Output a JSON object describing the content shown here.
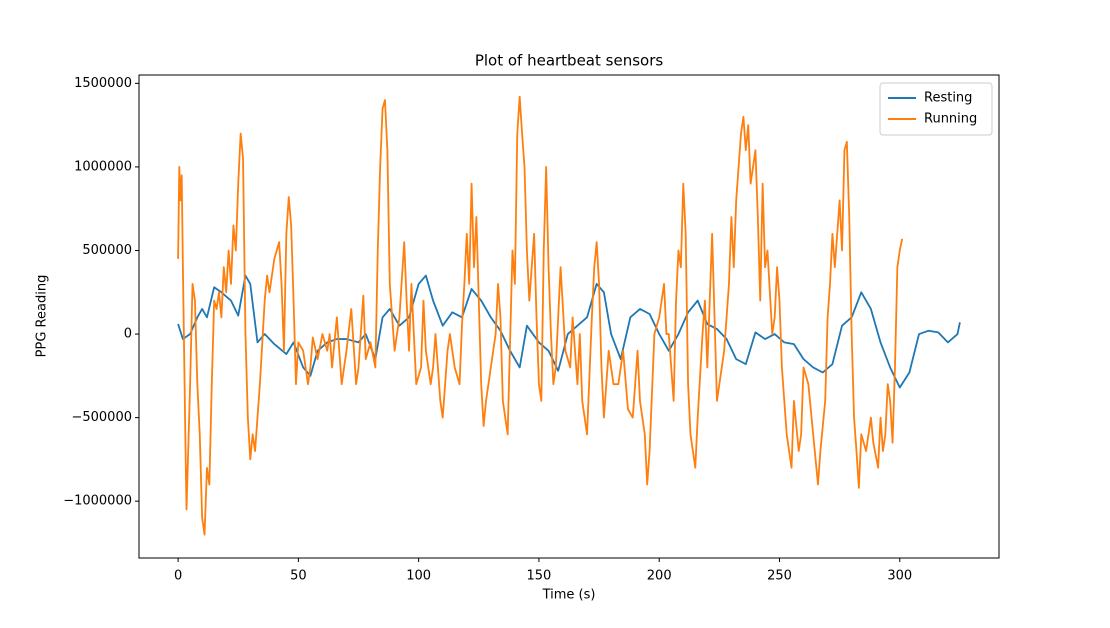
{
  "chart_data": {
    "type": "line",
    "title": "Plot of heartbeat sensors",
    "x_label": "Time (s)",
    "y_label": "PPG Reading",
    "xlim": [
      -16.25,
      341.25
    ],
    "ylim": [
      -1340000,
      1550000
    ],
    "xticks": [
      0,
      50,
      100,
      150,
      200,
      250,
      300
    ],
    "yticks": [
      {
        "value": -1000000,
        "label": "−1000000"
      },
      {
        "value": -500000,
        "label": "−500000"
      },
      0,
      500000,
      1000000,
      1500000
    ],
    "legend": "upper right",
    "grid": false,
    "series": [
      {
        "name": "Resting",
        "color": "#1f77b4",
        "x": [
          0,
          2,
          5,
          8,
          10,
          12,
          15,
          18,
          22,
          25,
          28,
          30,
          33,
          36,
          40,
          45,
          48,
          52,
          55,
          58,
          62,
          66,
          70,
          75,
          78,
          82,
          85,
          88,
          92,
          96,
          100,
          103,
          106,
          110,
          114,
          118,
          122,
          126,
          130,
          134,
          138,
          142,
          145,
          150,
          154,
          158,
          162,
          166,
          170,
          174,
          177,
          180,
          184,
          188,
          192,
          196,
          200,
          204,
          208,
          212,
          216,
          220,
          224,
          228,
          232,
          236,
          240,
          244,
          248,
          252,
          256,
          260,
          264,
          268,
          272,
          276,
          280,
          284,
          288,
          292,
          296,
          300,
          304,
          308,
          312,
          316,
          320,
          324,
          325
        ],
        "values": [
          60000,
          -30000,
          0,
          100000,
          150000,
          100000,
          280000,
          250000,
          200000,
          110000,
          350000,
          300000,
          -50000,
          0,
          -60000,
          -120000,
          -50000,
          -200000,
          -250000,
          -100000,
          -50000,
          -30000,
          -30000,
          -50000,
          0,
          -150000,
          100000,
          150000,
          50000,
          100000,
          300000,
          350000,
          200000,
          50000,
          130000,
          100000,
          270000,
          200000,
          100000,
          20000,
          -100000,
          -200000,
          50000,
          -50000,
          -100000,
          -220000,
          0,
          50000,
          100000,
          300000,
          250000,
          0,
          -150000,
          100000,
          150000,
          120000,
          0,
          -100000,
          0,
          130000,
          200000,
          60000,
          30000,
          -30000,
          -150000,
          -180000,
          10000,
          -30000,
          0,
          -50000,
          -60000,
          -150000,
          -200000,
          -230000,
          -180000,
          50000,
          100000,
          250000,
          150000,
          -50000,
          -200000,
          -320000,
          -230000,
          0,
          20000,
          10000,
          -50000,
          0,
          70000
        ]
      },
      {
        "name": "Running",
        "color": "#ff7f0e",
        "x": [
          0,
          0.5,
          1,
          1.5,
          2,
          3,
          3.5,
          5,
          6,
          7,
          8,
          9,
          10,
          11,
          12,
          13,
          14,
          15,
          16,
          17,
          18,
          19,
          20,
          21,
          22,
          23,
          24,
          25,
          26,
          27,
          28,
          29,
          30,
          31,
          32,
          34,
          36,
          37,
          38,
          40,
          42,
          43,
          44,
          45,
          46,
          47,
          48,
          49,
          50,
          52,
          54,
          55,
          56,
          58,
          60,
          62,
          63,
          64,
          66,
          68,
          70,
          72,
          74,
          75,
          77,
          78,
          80,
          82,
          83,
          84,
          85,
          86,
          87,
          88,
          90,
          92,
          94,
          95,
          96,
          97,
          98,
          99,
          101,
          102,
          103,
          105,
          106,
          107,
          109,
          110,
          112,
          113,
          115,
          117,
          118,
          119,
          120,
          121,
          122,
          123,
          124,
          125,
          126,
          127,
          128,
          130,
          132,
          133,
          134,
          135,
          137,
          139,
          140,
          141,
          142,
          143,
          144,
          145,
          146,
          148,
          149,
          150,
          151,
          152,
          153,
          154,
          155,
          156,
          157,
          159,
          161,
          163,
          164,
          166,
          167,
          168,
          170,
          172,
          173,
          174,
          175,
          176,
          177,
          179,
          181,
          183,
          185,
          187,
          189,
          191,
          192,
          194,
          195,
          196,
          198,
          200,
          202,
          203,
          204,
          206,
          207,
          208,
          209,
          210,
          211,
          212,
          213,
          214,
          215,
          216,
          218,
          219,
          220,
          222,
          223,
          224,
          226,
          227,
          229,
          230,
          231,
          232,
          233,
          234,
          235,
          236,
          237,
          238,
          240,
          241,
          242,
          243,
          244,
          245,
          247,
          248,
          249,
          250,
          251,
          252,
          253,
          255,
          256,
          258,
          259,
          260,
          262,
          264,
          266,
          267,
          269,
          270,
          271,
          272,
          273,
          275,
          276,
          277,
          278,
          279,
          280,
          281,
          282,
          283,
          284,
          286,
          288,
          289,
          291,
          292,
          293,
          294,
          295,
          296,
          297,
          298,
          299,
          300,
          301
        ],
        "values": [
          450000,
          1000000,
          800000,
          950000,
          400000,
          -600000,
          -1050000,
          -300000,
          300000,
          200000,
          -300000,
          -600000,
          -1100000,
          -1200000,
          -800000,
          -900000,
          -300000,
          200000,
          150000,
          250000,
          100000,
          400000,
          250000,
          500000,
          300000,
          650000,
          500000,
          900000,
          1200000,
          1050000,
          0,
          -500000,
          -750000,
          -600000,
          -700000,
          -300000,
          200000,
          350000,
          250000,
          450000,
          550000,
          300000,
          -100000,
          600000,
          820000,
          650000,
          200000,
          -300000,
          -50000,
          -100000,
          -300000,
          -200000,
          -20000,
          -150000,
          0,
          -100000,
          0,
          -200000,
          100000,
          -300000,
          -100000,
          150000,
          -300000,
          -200000,
          230000,
          -150000,
          -50000,
          -200000,
          500000,
          1000000,
          1350000,
          1400000,
          1100000,
          300000,
          -100000,
          100000,
          550000,
          200000,
          -100000,
          300000,
          0,
          -300000,
          -200000,
          200000,
          -100000,
          -300000,
          -200000,
          0,
          -400000,
          -500000,
          -100000,
          0,
          -200000,
          -300000,
          50000,
          300000,
          600000,
          300000,
          900000,
          400000,
          700000,
          200000,
          -300000,
          -550000,
          -400000,
          -200000,
          0,
          300000,
          100000,
          -400000,
          -600000,
          500000,
          300000,
          1200000,
          1420000,
          1200000,
          1000000,
          500000,
          200000,
          600000,
          100000,
          -300000,
          -400000,
          500000,
          1000000,
          400000,
          0,
          -300000,
          -200000,
          400000,
          -100000,
          -200000,
          100000,
          -300000,
          0,
          -400000,
          -600000,
          100000,
          400000,
          550000,
          300000,
          -200000,
          -500000,
          -100000,
          -300000,
          -300000,
          -100000,
          -450000,
          -500000,
          -100000,
          -400000,
          -600000,
          -900000,
          -700000,
          0,
          100000,
          300000,
          0,
          0,
          -400000,
          200000,
          500000,
          400000,
          900000,
          600000,
          -300000,
          -600000,
          -700000,
          -800000,
          -500000,
          0,
          200000,
          -200000,
          600000,
          100000,
          -400000,
          -200000,
          -100000,
          300000,
          700000,
          400000,
          800000,
          1000000,
          1200000,
          1300000,
          1100000,
          1250000,
          900000,
          1100000,
          700000,
          200000,
          900000,
          400000,
          500000,
          0,
          100000,
          400000,
          200000,
          -200000,
          -400000,
          -600000,
          -800000,
          -400000,
          -700000,
          -600000,
          -200000,
          -300000,
          -600000,
          -900000,
          -700000,
          -400000,
          100000,
          300000,
          600000,
          400000,
          800000,
          500000,
          1100000,
          1150000,
          700000,
          0,
          -500000,
          -700000,
          -920000,
          -600000,
          -700000,
          -500000,
          -650000,
          -800000,
          -500000,
          -700000,
          -600000,
          -300000,
          -400000,
          -650000,
          -200000,
          400000,
          500000,
          570000
        ]
      }
    ]
  }
}
